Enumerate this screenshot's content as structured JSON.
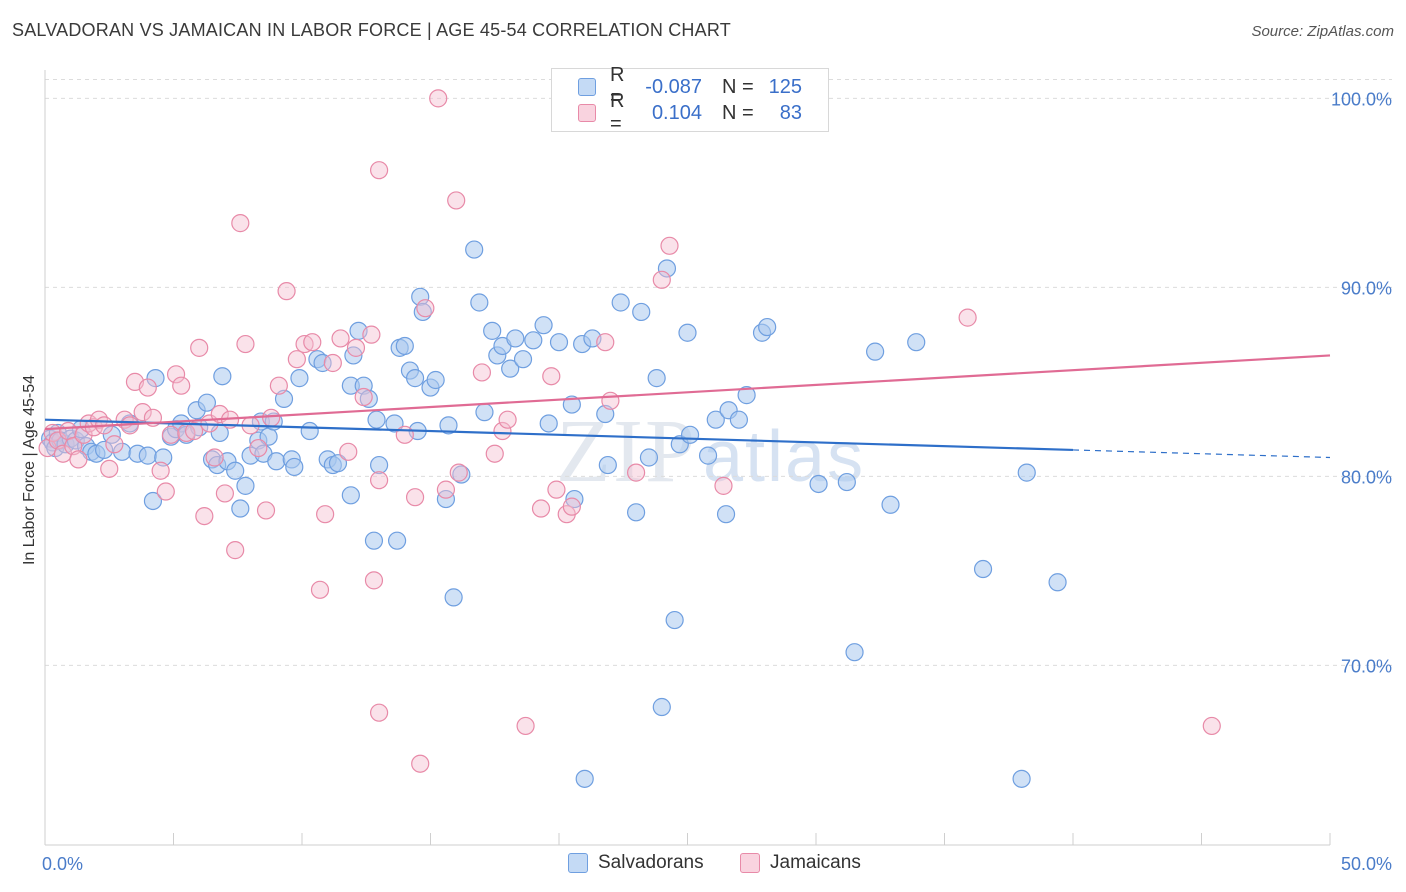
{
  "title": "SALVADORAN VS JAMAICAN IN LABOR FORCE | AGE 45-54 CORRELATION CHART",
  "source": "Source: ZipAtlas.com",
  "watermark": {
    "zip": "ZIP",
    "atlas": "atlas"
  },
  "colors": {
    "blue_fill": "#aac8ef",
    "blue_stroke": "#6f9fe0",
    "blue_line": "#2e6fc9",
    "pink_fill": "#f5bfd0",
    "pink_stroke": "#e88aa8",
    "pink_line": "#e06b94",
    "grid": "#dcdcdc",
    "tick_text": "#4a7cc9"
  },
  "legend": {
    "rows": [
      {
        "r_label": "R =",
        "r_value": "-0.087",
        "n_label": "N =",
        "n_value": "125"
      },
      {
        "r_label": "R =",
        "r_value": "0.104",
        "n_label": "N =",
        "n_value": "83"
      }
    ]
  },
  "bottom_legend": [
    "Salvadorans",
    "Jamaicans"
  ],
  "chart_data": {
    "type": "scatter",
    "title": "SALVADORAN VS JAMAICAN IN LABOR FORCE | AGE 45-54 CORRELATION CHART",
    "xlabel": "",
    "ylabel": "In Labor Force | Age 45-54",
    "xlim": [
      0,
      50
    ],
    "ylim": [
      60.5,
      101.5
    ],
    "x_tick_labels": [
      "0.0%",
      "50.0%"
    ],
    "y_ticks": [
      70,
      80,
      90,
      100
    ],
    "y_tick_labels": [
      "70.0%",
      "80.0%",
      "90.0%",
      "100.0%"
    ],
    "grid": true,
    "series": [
      {
        "name": "Salvadorans",
        "r": -0.087,
        "n": 125,
        "trend": {
          "x0": 0,
          "y0": 83.0,
          "x1": 40,
          "y1": 81.4,
          "dash_to_x": 50,
          "dash_to_y": 81.0
        },
        "points": [
          [
            0.2,
            82
          ],
          [
            0.3,
            81.8
          ],
          [
            0.4,
            81.5
          ],
          [
            0.5,
            82.3
          ],
          [
            0.6,
            81.9
          ],
          [
            0.8,
            81.7
          ],
          [
            1.0,
            82.0
          ],
          [
            1.2,
            81.9
          ],
          [
            1.4,
            82.5
          ],
          [
            1.6,
            81.6
          ],
          [
            1.8,
            81.3
          ],
          [
            2.0,
            81.2
          ],
          [
            2.3,
            81.4
          ],
          [
            2.6,
            82.2
          ],
          [
            3.0,
            81.3
          ],
          [
            3.3,
            82.8
          ],
          [
            3.6,
            81.2
          ],
          [
            4.0,
            81.1
          ],
          [
            4.2,
            78.7
          ],
          [
            4.3,
            85.2
          ],
          [
            4.6,
            81.0
          ],
          [
            4.9,
            82.1
          ],
          [
            5.1,
            82.5
          ],
          [
            5.3,
            82.8
          ],
          [
            5.5,
            82.2
          ],
          [
            5.9,
            83.5
          ],
          [
            6.0,
            82.6
          ],
          [
            6.3,
            83.9
          ],
          [
            6.5,
            80.9
          ],
          [
            6.7,
            80.6
          ],
          [
            6.8,
            82.3
          ],
          [
            6.9,
            85.3
          ],
          [
            7.1,
            80.8
          ],
          [
            7.4,
            80.3
          ],
          [
            7.6,
            78.3
          ],
          [
            7.8,
            79.5
          ],
          [
            8.0,
            81.1
          ],
          [
            8.3,
            81.9
          ],
          [
            8.4,
            82.9
          ],
          [
            8.5,
            81.2
          ],
          [
            8.7,
            82.1
          ],
          [
            8.9,
            82.9
          ],
          [
            9.0,
            80.8
          ],
          [
            9.3,
            84.1
          ],
          [
            9.6,
            80.9
          ],
          [
            9.7,
            80.5
          ],
          [
            9.9,
            85.2
          ],
          [
            10.3,
            82.4
          ],
          [
            10.6,
            86.2
          ],
          [
            10.8,
            86.0
          ],
          [
            11.0,
            80.9
          ],
          [
            11.2,
            80.6
          ],
          [
            11.4,
            80.7
          ],
          [
            11.9,
            84.8
          ],
          [
            11.9,
            79.0
          ],
          [
            12.0,
            86.4
          ],
          [
            12.2,
            87.7
          ],
          [
            12.4,
            84.8
          ],
          [
            12.6,
            84.1
          ],
          [
            12.8,
            76.6
          ],
          [
            12.9,
            83.0
          ],
          [
            13.0,
            80.6
          ],
          [
            13.6,
            82.8
          ],
          [
            13.7,
            76.6
          ],
          [
            13.8,
            86.8
          ],
          [
            14.0,
            86.9
          ],
          [
            14.2,
            85.6
          ],
          [
            14.4,
            85.2
          ],
          [
            14.5,
            82.4
          ],
          [
            14.6,
            89.5
          ],
          [
            14.7,
            88.7
          ],
          [
            15.0,
            84.7
          ],
          [
            15.2,
            85.1
          ],
          [
            15.6,
            78.8
          ],
          [
            15.7,
            82.7
          ],
          [
            15.9,
            73.6
          ],
          [
            16.2,
            80.1
          ],
          [
            16.7,
            92.0
          ],
          [
            16.9,
            89.2
          ],
          [
            17.1,
            83.4
          ],
          [
            17.4,
            87.7
          ],
          [
            17.6,
            86.4
          ],
          [
            17.8,
            86.9
          ],
          [
            18.1,
            85.7
          ],
          [
            18.3,
            87.3
          ],
          [
            18.6,
            86.2
          ],
          [
            19.0,
            87.2
          ],
          [
            19.4,
            88.0
          ],
          [
            19.6,
            82.8
          ],
          [
            20.0,
            87.1
          ],
          [
            20.5,
            83.8
          ],
          [
            20.6,
            78.8
          ],
          [
            20.9,
            87.0
          ],
          [
            21.0,
            64.0
          ],
          [
            21.3,
            87.3
          ],
          [
            21.8,
            83.3
          ],
          [
            21.9,
            80.6
          ],
          [
            22.4,
            89.2
          ],
          [
            23.0,
            78.1
          ],
          [
            23.2,
            88.7
          ],
          [
            23.5,
            81.0
          ],
          [
            23.8,
            85.2
          ],
          [
            24.2,
            91.0
          ],
          [
            24.5,
            72.4
          ],
          [
            24.7,
            81.7
          ],
          [
            25.0,
            87.6
          ],
          [
            25.1,
            82.2
          ],
          [
            25.8,
            81.1
          ],
          [
            26.1,
            83.0
          ],
          [
            26.5,
            78.0
          ],
          [
            26.6,
            83.5
          ],
          [
            27.0,
            83.0
          ],
          [
            27.3,
            84.3
          ],
          [
            27.9,
            87.6
          ],
          [
            28.1,
            87.9
          ],
          [
            30.1,
            79.6
          ],
          [
            31.2,
            79.7
          ],
          [
            31.5,
            70.7
          ],
          [
            32.3,
            86.6
          ],
          [
            32.9,
            78.5
          ],
          [
            33.9,
            87.1
          ],
          [
            36.5,
            75.1
          ],
          [
            38.0,
            64.0
          ],
          [
            38.2,
            80.2
          ],
          [
            39.4,
            74.4
          ],
          [
            24.0,
            67.8
          ]
        ]
      },
      {
        "name": "Jamaicans",
        "r": 0.104,
        "n": 83,
        "trend": {
          "x0": 0,
          "y0": 82.5,
          "x1": 50,
          "y1": 86.4
        },
        "points": [
          [
            0.1,
            81.5
          ],
          [
            0.3,
            82.3
          ],
          [
            0.5,
            81.9
          ],
          [
            0.7,
            81.2
          ],
          [
            0.9,
            82.4
          ],
          [
            1.1,
            81.6
          ],
          [
            1.3,
            80.9
          ],
          [
            1.5,
            82.2
          ],
          [
            1.7,
            82.8
          ],
          [
            1.9,
            82.6
          ],
          [
            2.1,
            83.0
          ],
          [
            2.3,
            82.7
          ],
          [
            2.5,
            80.4
          ],
          [
            2.7,
            81.7
          ],
          [
            3.1,
            83.0
          ],
          [
            3.3,
            82.7
          ],
          [
            3.5,
            85.0
          ],
          [
            3.8,
            83.4
          ],
          [
            4.0,
            84.7
          ],
          [
            4.2,
            83.1
          ],
          [
            4.5,
            80.3
          ],
          [
            4.7,
            79.2
          ],
          [
            4.9,
            82.2
          ],
          [
            5.1,
            85.4
          ],
          [
            5.3,
            84.8
          ],
          [
            5.5,
            82.3
          ],
          [
            5.8,
            82.4
          ],
          [
            6.0,
            86.8
          ],
          [
            6.2,
            77.9
          ],
          [
            6.4,
            82.8
          ],
          [
            6.6,
            81.0
          ],
          [
            6.8,
            83.3
          ],
          [
            7.0,
            79.1
          ],
          [
            7.2,
            83.0
          ],
          [
            7.4,
            76.1
          ],
          [
            7.6,
            93.4
          ],
          [
            7.8,
            87.0
          ],
          [
            8.0,
            82.7
          ],
          [
            8.3,
            81.5
          ],
          [
            8.6,
            78.2
          ],
          [
            8.8,
            83.1
          ],
          [
            9.1,
            84.8
          ],
          [
            9.4,
            89.8
          ],
          [
            9.8,
            86.2
          ],
          [
            10.1,
            87.0
          ],
          [
            10.4,
            87.1
          ],
          [
            10.7,
            74.0
          ],
          [
            10.9,
            78.0
          ],
          [
            11.2,
            86.0
          ],
          [
            11.5,
            87.3
          ],
          [
            11.8,
            81.3
          ],
          [
            12.1,
            86.8
          ],
          [
            12.4,
            84.2
          ],
          [
            12.7,
            87.5
          ],
          [
            13.0,
            79.8
          ],
          [
            12.8,
            74.5
          ],
          [
            13.0,
            96.2
          ],
          [
            13.0,
            67.5
          ],
          [
            14.0,
            82.2
          ],
          [
            14.4,
            78.9
          ],
          [
            14.6,
            64.8
          ],
          [
            14.8,
            88.9
          ],
          [
            15.3,
            100.0
          ],
          [
            15.6,
            79.3
          ],
          [
            16.0,
            94.6
          ],
          [
            16.1,
            80.2
          ],
          [
            17.0,
            85.5
          ],
          [
            17.5,
            81.2
          ],
          [
            17.8,
            82.4
          ],
          [
            18.0,
            83.0
          ],
          [
            18.7,
            66.8
          ],
          [
            19.3,
            78.3
          ],
          [
            19.7,
            85.3
          ],
          [
            19.9,
            79.3
          ],
          [
            20.3,
            78.0
          ],
          [
            20.5,
            78.4
          ],
          [
            21.8,
            87.1
          ],
          [
            22.0,
            84.0
          ],
          [
            23.0,
            80.2
          ],
          [
            24.0,
            90.4
          ],
          [
            24.3,
            92.2
          ],
          [
            26.4,
            79.5
          ],
          [
            35.9,
            88.4
          ],
          [
            45.4,
            66.8
          ]
        ]
      }
    ]
  }
}
